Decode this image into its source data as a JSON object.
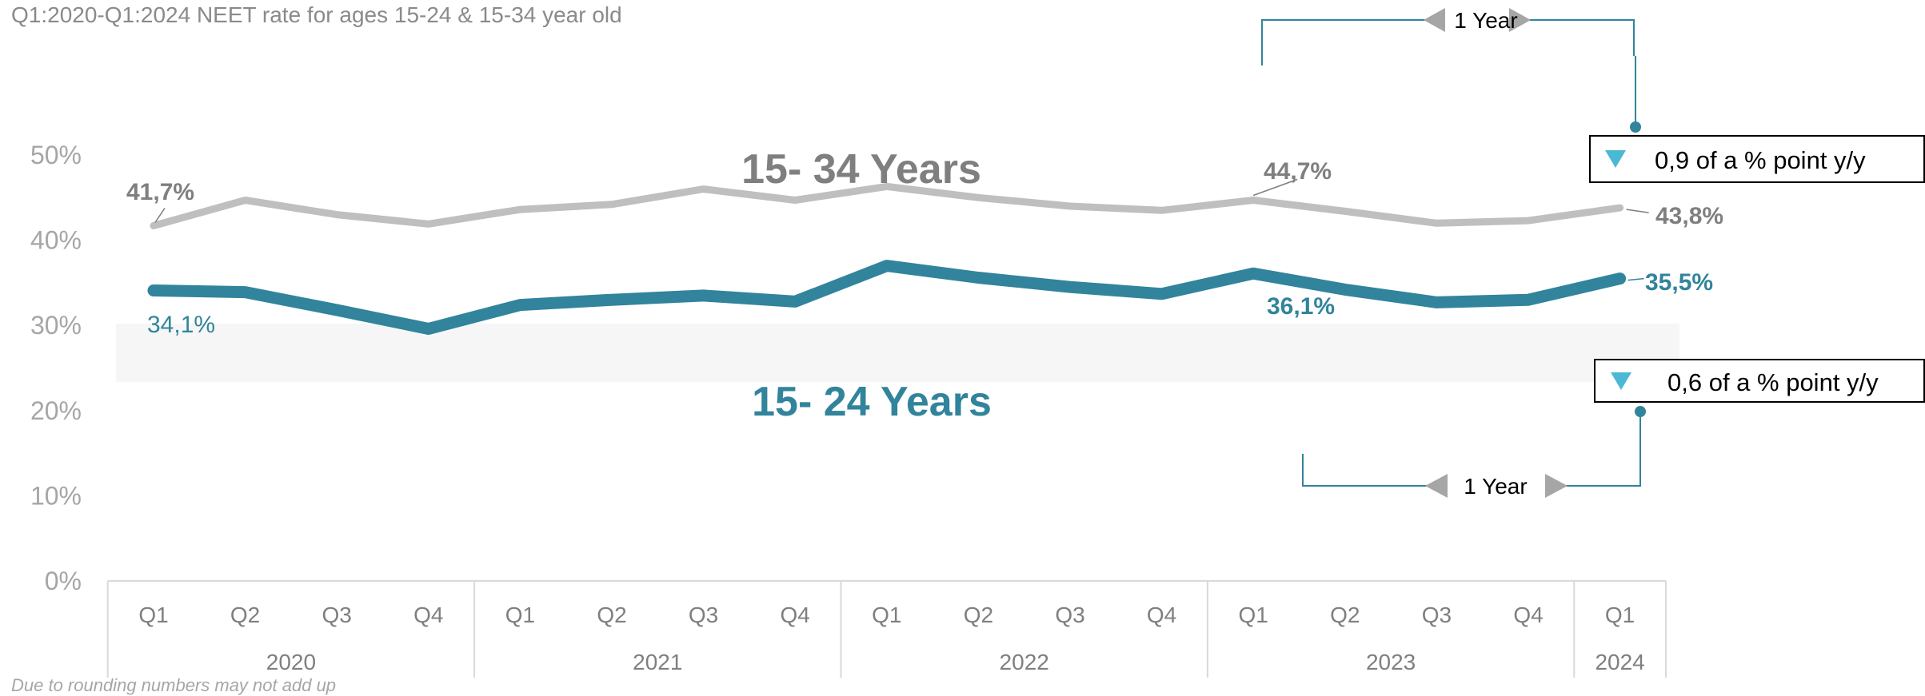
{
  "chart_data": {
    "type": "line",
    "title": "Q1:2020-Q1:2024  NEET rate for ages 15-24 & 15-34 year old",
    "footnote": "Due to rounding numbers may not add up",
    "x": [
      "Q1",
      "Q2",
      "Q3",
      "Q4",
      "Q1",
      "Q2",
      "Q3",
      "Q4",
      "Q1",
      "Q2",
      "Q3",
      "Q4",
      "Q1",
      "Q2",
      "Q3",
      "Q4",
      "Q1"
    ],
    "years": [
      {
        "label": "2020",
        "quarters": 4
      },
      {
        "label": "2021",
        "quarters": 4
      },
      {
        "label": "2022",
        "quarters": 4
      },
      {
        "label": "2023",
        "quarters": 4
      },
      {
        "label": "2024",
        "quarters": 1
      }
    ],
    "yticks": [
      "0%",
      "10%",
      "20%",
      "30%",
      "40%",
      "50%"
    ],
    "ylim": [
      0,
      50
    ],
    "grid": false,
    "series": [
      {
        "name": "15- 34 Years",
        "color": "#bfbfbf",
        "values": [
          41.7,
          44.7,
          43.0,
          41.9,
          43.6,
          44.2,
          46.0,
          44.7,
          46.3,
          45.0,
          44.0,
          43.5,
          44.7,
          43.4,
          42.0,
          42.3,
          43.8
        ]
      },
      {
        "name": "15- 24 Years",
        "color": "#31849b",
        "values": [
          34.1,
          33.9,
          31.8,
          29.6,
          32.4,
          33.0,
          33.5,
          32.8,
          37.0,
          35.6,
          34.5,
          33.7,
          36.1,
          34.2,
          32.7,
          33.0,
          35.5
        ]
      }
    ],
    "data_labels": {
      "s34_first": "41,7%",
      "s34_q1_2023": "44,7%",
      "s34_last": "43,8%",
      "s24_first": "34,1%",
      "s24_q1_2023": "36,1%",
      "s24_last": "35,5%"
    },
    "series_labels": {
      "s34": "15- 34 Years",
      "s24": "15- 24 Years"
    },
    "annotations": {
      "top_span": "1 Year",
      "top_change": "0,9 of a %  point y/y",
      "bottom_span": "1 Year",
      "bottom_change": "0,6 of a % point y/y"
    },
    "colors": {
      "series_34": "#bfbfbf",
      "series_24": "#31849b",
      "label_34": "#7f7f7f",
      "bracket": "#31849b",
      "down_arrow": "#4bb8d4",
      "band": "#f6f6f6",
      "axis": "#d9d9d9",
      "year_arrow": "#a6a6a6"
    }
  }
}
